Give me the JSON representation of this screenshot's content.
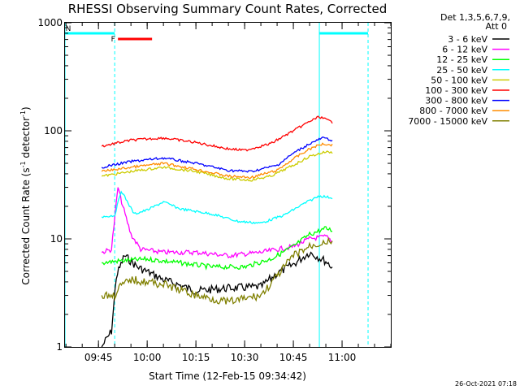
{
  "chart_data": {
    "type": "line",
    "title": "RHESSI Observing Summary Count Rates, Corrected",
    "xlabel": "Start Time (12-Feb-15 09:34:42)",
    "ylabel_main": "Corrected Count Rate (s",
    "ylabel_sup1": "-1",
    "ylabel_mid": " detector",
    "ylabel_sup2": "-1",
    "ylabel_end": ")",
    "y_scale": "log",
    "ylim": [
      1,
      1000
    ],
    "xlim": [
      "09:34:42",
      "11:15:00"
    ],
    "y_ticks": [
      {
        "value": 1,
        "label": "1"
      },
      {
        "value": 10,
        "label": "10"
      },
      {
        "value": 100,
        "label": "100"
      },
      {
        "value": 1000,
        "label": "1000"
      }
    ],
    "x_ticks": [
      {
        "time": "09:45",
        "label": "09:45"
      },
      {
        "time": "10:00",
        "label": "10:00"
      },
      {
        "time": "10:15",
        "label": "10:15"
      },
      {
        "time": "10:30",
        "label": "10:30"
      },
      {
        "time": "10:45",
        "label": "10:45"
      },
      {
        "time": "11:00",
        "label": "11:00"
      }
    ],
    "legend_header": "Det 1,3,5,6,7,9,",
    "legend_sub": "Att 0",
    "legend_position": "right",
    "timestamp": "26-Oct-2021 07:18",
    "flags": [
      {
        "label": "N",
        "color": "#00ffff",
        "start": "09:34:42",
        "end": "09:50:00"
      },
      {
        "label": "N",
        "color": "#00ffff",
        "start": "10:53:00",
        "end": "11:08:00"
      },
      {
        "label": "F",
        "color": "#ff0000",
        "start": "09:51:00",
        "end": "10:01:30"
      }
    ],
    "night_boundaries": [
      "09:34:42",
      "09:50:00",
      "10:53:00",
      "11:08:00"
    ],
    "series": [
      {
        "name": "3 - 6 keV",
        "color": "#000000",
        "x": [
          "09:46:00",
          "09:49:00",
          "09:50:30",
          "09:53:00",
          "09:57:00",
          "10:05:00",
          "10:15:00",
          "10:25:00",
          "10:35:00",
          "10:40:00",
          "10:45:00",
          "10:50:00",
          "10:55:00",
          "10:57:00"
        ],
        "values": [
          1.0,
          1.4,
          4.5,
          7.0,
          5.5,
          4.2,
          3.3,
          3.5,
          3.6,
          4.8,
          5.8,
          7.5,
          6.2,
          5.5
        ]
      },
      {
        "name": "6 - 12 keV",
        "color": "#ff00ff",
        "x": [
          "09:46:00",
          "09:49:00",
          "09:51:00",
          "09:52:30",
          "09:55:00",
          "09:58:00",
          "10:05:00",
          "10:15:00",
          "10:25:00",
          "10:35:00",
          "10:45:00",
          "10:50:00",
          "10:55:00",
          "10:57:00"
        ],
        "values": [
          7.5,
          8.0,
          30.0,
          20.0,
          11.0,
          8.0,
          7.5,
          7.5,
          7.0,
          7.5,
          8.5,
          10.0,
          10.5,
          9.5
        ]
      },
      {
        "name": "12 - 25 keV",
        "color": "#00ff00",
        "x": [
          "09:46:00",
          "09:50:00",
          "10:00:00",
          "10:10:00",
          "10:20:00",
          "10:30:00",
          "10:38:00",
          "10:45:00",
          "10:50:00",
          "10:55:00",
          "10:57:00"
        ],
        "values": [
          6.0,
          6.2,
          6.5,
          6.0,
          5.5,
          5.5,
          6.5,
          8.5,
          11.0,
          12.5,
          12.0
        ]
      },
      {
        "name": "25 - 50 keV",
        "color": "#00ffff",
        "x": [
          "09:46:00",
          "09:50:00",
          "09:52:00",
          "09:56:00",
          "10:00:00",
          "10:05:00",
          "10:10:00",
          "10:20:00",
          "10:28:00",
          "10:35:00",
          "10:42:00",
          "10:48:00",
          "10:53:00",
          "10:57:00"
        ],
        "values": [
          16.0,
          16.5,
          28.0,
          17.0,
          18.5,
          22.0,
          19.0,
          17.0,
          14.5,
          14.0,
          16.5,
          21.0,
          25.0,
          24.0
        ]
      },
      {
        "name": "50 - 100 keV",
        "color": "#cccc00",
        "x": [
          "09:46:00",
          "09:55:00",
          "10:05:00",
          "10:15:00",
          "10:25:00",
          "10:32:00",
          "10:38:00",
          "10:45:00",
          "10:50:00",
          "10:55:00",
          "10:57:00"
        ],
        "values": [
          38.0,
          42.0,
          46.0,
          42.0,
          36.0,
          35.0,
          38.0,
          48.0,
          58.0,
          64.0,
          63.0
        ]
      },
      {
        "name": "100 - 300 keV",
        "color": "#ff0000",
        "x": [
          "09:46:00",
          "09:55:00",
          "10:05:00",
          "10:15:00",
          "10:25:00",
          "10:30:00",
          "10:38:00",
          "10:45:00",
          "10:50:00",
          "10:53:00",
          "10:57:00"
        ],
        "values": [
          72.0,
          82.0,
          86.0,
          78.0,
          68.0,
          66.0,
          76.0,
          100.0,
          122.0,
          135.0,
          120.0
        ]
      },
      {
        "name": "300 - 800 keV",
        "color": "#0000ff",
        "x": [
          "09:46:00",
          "09:55:00",
          "10:05:00",
          "10:15:00",
          "10:25:00",
          "10:32:00",
          "10:40:00",
          "10:45:00",
          "10:50:00",
          "10:54:00",
          "10:57:00"
        ],
        "values": [
          46.0,
          52.0,
          56.0,
          50.0,
          43.0,
          42.0,
          48.0,
          62.0,
          76.0,
          86.0,
          82.0
        ]
      },
      {
        "name": "800 - 7000 keV",
        "color": "#ff8c00",
        "x": [
          "09:46:00",
          "09:55:00",
          "10:05:00",
          "10:15:00",
          "10:25:00",
          "10:32:00",
          "10:40:00",
          "10:45:00",
          "10:50:00",
          "10:54:00",
          "10:57:00"
        ],
        "values": [
          42.0,
          46.0,
          50.0,
          44.0,
          38.0,
          37.0,
          43.0,
          55.0,
          68.0,
          76.0,
          74.0
        ]
      },
      {
        "name": "7000 - 15000 keV",
        "color": "#808000",
        "x": [
          "09:46:00",
          "09:50:00",
          "09:51:00",
          "09:55:00",
          "10:05:00",
          "10:15:00",
          "10:25:00",
          "10:35:00",
          "10:40:00",
          "10:45:00",
          "10:50:00",
          "10:55:00",
          "10:57:00"
        ],
        "values": [
          3.0,
          3.0,
          3.5,
          4.2,
          3.8,
          3.0,
          2.6,
          3.0,
          4.5,
          7.0,
          8.5,
          9.5,
          9.0
        ]
      }
    ]
  }
}
